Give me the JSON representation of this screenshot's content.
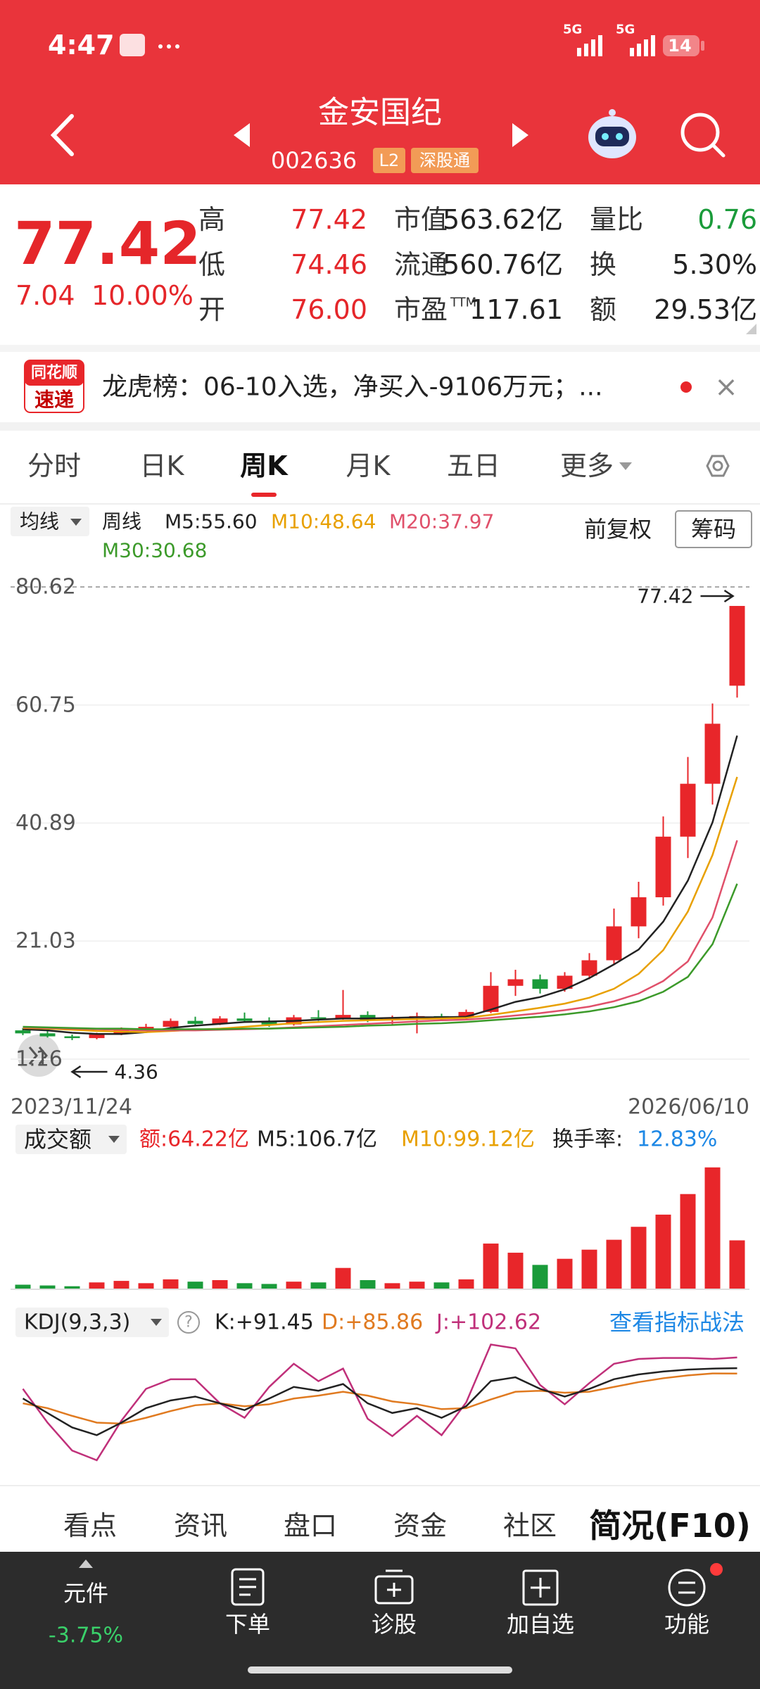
{
  "status": {
    "time": "4:47",
    "net1": "5G",
    "net2": "5G",
    "battery": "14"
  },
  "header": {
    "title": "金安国纪",
    "code": "002636",
    "badges": [
      "L2",
      "深股通"
    ]
  },
  "quote": {
    "price": "77.42",
    "change": "7.04",
    "change_pct": "10.00%",
    "stats": [
      {
        "label": "高",
        "value": "77.42"
      },
      {
        "label": "市值",
        "value": "563.62亿"
      },
      {
        "label": "量比",
        "value": "0.76"
      },
      {
        "label": "低",
        "value": "74.46"
      },
      {
        "label": "流通",
        "value": "560.76亿"
      },
      {
        "label": "换",
        "value": "5.30%"
      },
      {
        "label": "开",
        "value": "76.00"
      },
      {
        "label": "市盈",
        "sup": "TTM",
        "value": "117.61"
      },
      {
        "label": "额",
        "value": "29.53亿"
      }
    ]
  },
  "news": {
    "logo_top": "同花顺",
    "logo_bottom": "速递",
    "text": "龙虎榜：06-10入选，净买入-9106万元；...",
    "close": "×"
  },
  "tabs": {
    "items": [
      "分时",
      "日K",
      "周K",
      "月K",
      "五日",
      "更多"
    ],
    "active": 2
  },
  "chart_data": [
    {
      "type": "candlestick",
      "indicator": "均线",
      "period": "周线",
      "adjust": "前复权",
      "chips": "筹码",
      "up_color": "#e8262a",
      "down_color": "#1a9b3a",
      "categories": [
        "2023/11/24",
        null,
        null,
        null,
        null,
        null,
        null,
        null,
        null,
        null,
        null,
        null,
        null,
        null,
        null,
        null,
        null,
        null,
        null,
        null,
        null,
        null,
        null,
        null,
        null,
        null,
        null,
        null,
        null,
        "2026/06/10"
      ],
      "ohlc": [
        [
          6.0,
          6.4,
          5.2,
          5.5
        ],
        [
          5.5,
          5.9,
          4.8,
          5.0
        ],
        [
          5.0,
          5.3,
          4.36,
          4.7
        ],
        [
          4.7,
          5.6,
          4.5,
          5.4
        ],
        [
          5.4,
          6.5,
          5.2,
          6.2
        ],
        [
          6.2,
          7.1,
          5.9,
          6.6
        ],
        [
          6.6,
          8.0,
          6.2,
          7.6
        ],
        [
          7.6,
          8.3,
          6.8,
          7.1
        ],
        [
          7.1,
          8.4,
          6.9,
          8.0
        ],
        [
          8.0,
          9.0,
          7.3,
          7.6
        ],
        [
          7.6,
          8.2,
          6.6,
          7.0
        ],
        [
          7.0,
          8.6,
          6.8,
          8.2
        ],
        [
          8.2,
          9.4,
          7.6,
          8.0
        ],
        [
          8.0,
          12.8,
          7.8,
          8.6
        ],
        [
          8.6,
          9.2,
          7.4,
          7.8
        ],
        [
          7.8,
          8.5,
          7.0,
          8.1
        ],
        [
          8.1,
          9.0,
          5.5,
          8.4
        ],
        [
          8.4,
          8.8,
          7.6,
          8.2
        ],
        [
          8.2,
          9.5,
          7.9,
          9.1
        ],
        [
          9.1,
          15.8,
          8.9,
          13.5
        ],
        [
          13.5,
          16.2,
          11.8,
          14.6
        ],
        [
          14.6,
          15.4,
          12.2,
          13.0
        ],
        [
          13.0,
          15.8,
          12.5,
          15.2
        ],
        [
          15.2,
          19.0,
          14.6,
          17.8
        ],
        [
          17.8,
          26.5,
          17.0,
          23.5
        ],
        [
          23.5,
          31.0,
          21.5,
          28.4
        ],
        [
          28.4,
          42.0,
          27.0,
          38.6
        ],
        [
          38.6,
          52.0,
          35.0,
          47.5
        ],
        [
          47.5,
          61.0,
          44.0,
          57.6
        ],
        [
          64.0,
          77.42,
          62.0,
          77.42
        ]
      ],
      "series": [
        {
          "name": "M5:55.60",
          "color": "#222222",
          "values": [
            6.2,
            6.0,
            5.6,
            5.4,
            5.4,
            5.7,
            6.4,
            6.8,
            7.1,
            7.4,
            7.5,
            7.6,
            7.8,
            8.0,
            8.0,
            8.1,
            8.2,
            8.2,
            8.3,
            9.5,
            10.8,
            11.6,
            12.9,
            14.8,
            17.1,
            19.6,
            24.3,
            31.2,
            41.0,
            55.6
          ]
        },
        {
          "name": "M10:48.64",
          "color": "#e8a000",
          "values": [
            6.4,
            6.3,
            6.1,
            5.9,
            5.8,
            5.7,
            5.9,
            6.1,
            6.3,
            6.6,
            6.9,
            7.2,
            7.4,
            7.6,
            7.7,
            7.8,
            7.9,
            8.0,
            8.1,
            8.6,
            9.2,
            9.8,
            10.5,
            11.5,
            13.0,
            15.5,
            19.5,
            26.0,
            35.5,
            48.64
          ]
        },
        {
          "name": "M20:37.97",
          "color": "#e0506a",
          "values": [
            6.5,
            6.4,
            6.3,
            6.2,
            6.1,
            6.0,
            6.0,
            6.0,
            6.1,
            6.2,
            6.3,
            6.5,
            6.7,
            6.9,
            7.1,
            7.3,
            7.5,
            7.7,
            7.8,
            8.1,
            8.5,
            8.9,
            9.4,
            10.0,
            10.9,
            12.2,
            14.3,
            17.6,
            25.0,
            37.97
          ]
        },
        {
          "name": "M30:30.68",
          "color": "#3c9a2a",
          "values": [
            6.6,
            6.5,
            6.4,
            6.3,
            6.3,
            6.2,
            6.2,
            6.2,
            6.2,
            6.3,
            6.3,
            6.4,
            6.5,
            6.6,
            6.8,
            6.9,
            7.1,
            7.2,
            7.4,
            7.7,
            8.0,
            8.3,
            8.7,
            9.2,
            9.9,
            10.9,
            12.5,
            15.0,
            20.5,
            30.68
          ]
        }
      ],
      "annotations": [
        {
          "index": 29,
          "value": 77.42
        },
        {
          "index": 2,
          "value": 4.36
        }
      ],
      "ylim": [
        1.16,
        80.62
      ],
      "yticks": [
        80.62,
        60.75,
        40.89,
        21.03,
        1.16
      ],
      "grid": true
    },
    {
      "type": "bar",
      "title": "成交额",
      "up_color": "#e8262a",
      "down_color": "#1a9b3a",
      "legend": [
        {
          "text": "额:64.22亿",
          "color": "#e8262a"
        },
        {
          "text": "M5:106.7亿",
          "color": "#222222"
        },
        {
          "text": "M10:99.12亿",
          "color": "#e8a000"
        },
        {
          "text": "换手率:",
          "color": "#222222"
        },
        {
          "text": "12.83%",
          "color": "#1e88e5"
        }
      ],
      "values": [
        6,
        5,
        4,
        9,
        11,
        8,
        13,
        10,
        12,
        8,
        7,
        10,
        9,
        28,
        12,
        8,
        10,
        9,
        13,
        60,
        48,
        32,
        40,
        52,
        65,
        82,
        98,
        125,
        160,
        64.22
      ],
      "ylim": [
        0,
        170
      ]
    },
    {
      "type": "line",
      "title": "KDJ(9,3,3)",
      "help": "?",
      "link": "查看指标战法",
      "series": [
        {
          "name": "K:+91.45",
          "color": "#222222",
          "values": [
            60,
            45,
            30,
            22,
            35,
            50,
            58,
            62,
            55,
            48,
            60,
            72,
            68,
            75,
            55,
            45,
            50,
            40,
            52,
            78,
            82,
            70,
            62,
            70,
            80,
            85,
            88,
            90,
            91,
            91.45
          ]
        },
        {
          "name": "D:+85.86",
          "color": "#e07a20",
          "values": [
            55,
            50,
            42,
            35,
            34,
            40,
            47,
            53,
            55,
            52,
            54,
            60,
            63,
            67,
            63,
            57,
            54,
            49,
            50,
            59,
            67,
            68,
            66,
            67,
            72,
            77,
            81,
            84,
            86,
            85.86
          ]
        },
        {
          "name": "J:+102.62",
          "color": "#c0307a",
          "values": [
            70,
            35,
            6,
            -4,
            37,
            70,
            80,
            80,
            55,
            40,
            72,
            96,
            78,
            91,
            39,
            21,
            42,
            22,
            56,
            116,
            112,
            74,
            54,
            76,
            96,
            101,
            102,
            102,
            101,
            102.62
          ]
        }
      ],
      "ylim": [
        -15,
        120
      ]
    }
  ],
  "bottom_tabs": {
    "items": [
      "看点",
      "资讯",
      "盘口",
      "资金",
      "社区",
      "简况(F10)"
    ],
    "active": 5
  },
  "nav": [
    {
      "label": "元件",
      "sub": "-3.75%"
    },
    {
      "label": "下单"
    },
    {
      "label": "诊股"
    },
    {
      "label": "加自选"
    },
    {
      "label": "功能"
    }
  ]
}
